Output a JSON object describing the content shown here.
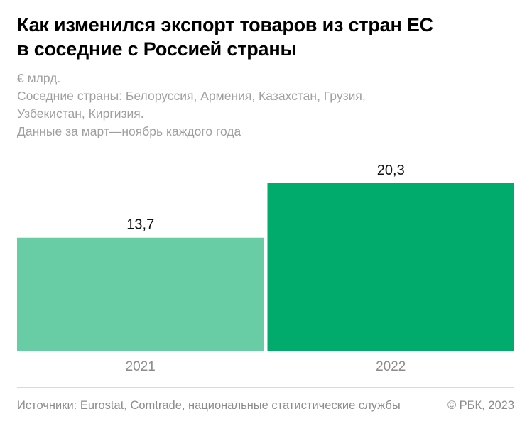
{
  "title_line1": "Как изменился экспорт товаров из стран ЕС",
  "title_line2": "в соседние с Россией страны",
  "subtitle_unit": "€ млрд.",
  "subtitle_line2": "Соседние страны: Белоруссия, Армения, Казахстан, Грузия,",
  "subtitle_line3": "Узбекистан, Киргизия.",
  "subtitle_line4": "Данные за март—ноябрь каждого года",
  "source": "Источники: Eurostat, Comtrade, национальные статистические службы",
  "copyright": "© РБК, 2023",
  "colors": {
    "bar_2021": "#68cca4",
    "bar_2022": "#00ab6c"
  },
  "chart_data": {
    "type": "bar",
    "categories": [
      "2021",
      "2022"
    ],
    "values": [
      13.7,
      20.3
    ],
    "value_labels": [
      "13,7",
      "20,3"
    ],
    "ylim": [
      0,
      20.3
    ],
    "grid": false
  }
}
